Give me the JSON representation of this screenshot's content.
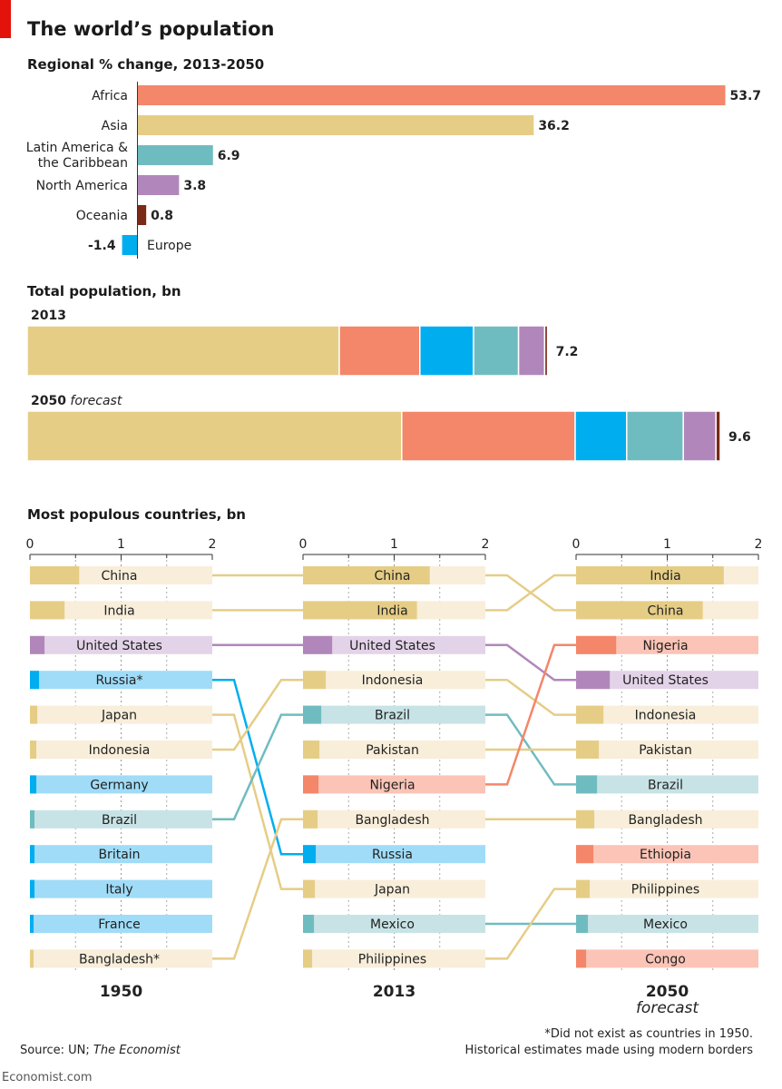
{
  "title": "The world’s population",
  "colors": {
    "Africa": "#f4866a",
    "Asia": "#e6cd86",
    "Latin America & the Caribbean": "#6fbcc0",
    "North America": "#b187bb",
    "Oceania": "#7b2a18",
    "Europe": "#00aeef",
    "accent": "#e3120b"
  },
  "chart_data": [
    {
      "type": "bar",
      "title": "Regional % change, 2013-2050",
      "orientation": "horizontal",
      "categories": [
        "Africa",
        "Asia",
        "Latin America & the Caribbean",
        "North America",
        "Oceania",
        "Europe"
      ],
      "category_display": [
        [
          "Africa"
        ],
        [
          "Asia"
        ],
        [
          "Latin America &",
          "the Caribbean"
        ],
        [
          "North America"
        ],
        [
          "Oceania"
        ],
        [
          "Europe"
        ]
      ],
      "values": [
        53.7,
        36.2,
        6.9,
        3.8,
        0.8,
        -1.4
      ],
      "value_labels": [
        "53.7",
        "36.2",
        "6.9",
        "3.8",
        "0.8",
        "-1.4"
      ]
    },
    {
      "type": "bar",
      "stacked": true,
      "title": "Total population, bn",
      "series_order": [
        "Asia",
        "Africa",
        "Europe",
        "Latin America & the Caribbean",
        "North America",
        "Oceania"
      ],
      "rows": [
        {
          "label": "2013",
          "label_suffix": "",
          "values": [
            4.3,
            1.11,
            0.74,
            0.62,
            0.36,
            0.04
          ],
          "total_label": "7.2"
        },
        {
          "label": "2050",
          "label_suffix": "forecast",
          "values": [
            5.16,
            2.39,
            0.71,
            0.78,
            0.45,
            0.06
          ],
          "total_label": "9.6"
        }
      ]
    },
    {
      "type": "bar",
      "title": "Most populous countries, bn",
      "axis": {
        "min": 0,
        "max": 2,
        "ticks": [
          "0",
          "1",
          "2"
        ]
      },
      "columns": [
        {
          "year": "1950",
          "sub": "",
          "items": [
            {
              "name": "China",
              "value": 0.54,
              "region": "Asia"
            },
            {
              "name": "India",
              "value": 0.38,
              "region": "Asia"
            },
            {
              "name": "United States",
              "value": 0.16,
              "region": "North America"
            },
            {
              "name": "Russia*",
              "value": 0.1,
              "region": "Europe"
            },
            {
              "name": "Japan",
              "value": 0.08,
              "region": "Asia"
            },
            {
              "name": "Indonesia",
              "value": 0.07,
              "region": "Asia"
            },
            {
              "name": "Germany",
              "value": 0.07,
              "region": "Europe"
            },
            {
              "name": "Brazil",
              "value": 0.05,
              "region": "Latin America & the Caribbean"
            },
            {
              "name": "Britain",
              "value": 0.05,
              "region": "Europe"
            },
            {
              "name": "Italy",
              "value": 0.05,
              "region": "Europe"
            },
            {
              "name": "France",
              "value": 0.04,
              "region": "Europe"
            },
            {
              "name": "Bangladesh*",
              "value": 0.04,
              "region": "Asia"
            }
          ]
        },
        {
          "year": "2013",
          "sub": "",
          "items": [
            {
              "name": "China",
              "value": 1.39,
              "region": "Asia"
            },
            {
              "name": "India",
              "value": 1.25,
              "region": "Asia"
            },
            {
              "name": "United States",
              "value": 0.32,
              "region": "North America"
            },
            {
              "name": "Indonesia",
              "value": 0.25,
              "region": "Asia"
            },
            {
              "name": "Brazil",
              "value": 0.2,
              "region": "Latin America & the Caribbean"
            },
            {
              "name": "Pakistan",
              "value": 0.18,
              "region": "Asia"
            },
            {
              "name": "Nigeria",
              "value": 0.17,
              "region": "Africa"
            },
            {
              "name": "Bangladesh",
              "value": 0.16,
              "region": "Asia"
            },
            {
              "name": "Russia",
              "value": 0.14,
              "region": "Europe"
            },
            {
              "name": "Japan",
              "value": 0.13,
              "region": "Asia"
            },
            {
              "name": "Mexico",
              "value": 0.12,
              "region": "Latin America & the Caribbean"
            },
            {
              "name": "Philippines",
              "value": 0.1,
              "region": "Asia"
            }
          ]
        },
        {
          "year": "2050",
          "sub": "forecast",
          "items": [
            {
              "name": "India",
              "value": 1.62,
              "region": "Asia"
            },
            {
              "name": "China",
              "value": 1.39,
              "region": "Asia"
            },
            {
              "name": "Nigeria",
              "value": 0.44,
              "region": "Africa"
            },
            {
              "name": "United States",
              "value": 0.37,
              "region": "North America"
            },
            {
              "name": "Indonesia",
              "value": 0.3,
              "region": "Asia"
            },
            {
              "name": "Pakistan",
              "value": 0.25,
              "region": "Asia"
            },
            {
              "name": "Brazil",
              "value": 0.23,
              "region": "Latin America & the Caribbean"
            },
            {
              "name": "Bangladesh",
              "value": 0.2,
              "region": "Asia"
            },
            {
              "name": "Ethiopia",
              "value": 0.19,
              "region": "Africa"
            },
            {
              "name": "Philippines",
              "value": 0.15,
              "region": "Asia"
            },
            {
              "name": "Mexico",
              "value": 0.13,
              "region": "Latin America & the Caribbean"
            },
            {
              "name": "Congo",
              "value": 0.11,
              "region": "Africa"
            }
          ]
        }
      ],
      "links": [
        {
          "from": [
            0,
            0
          ],
          "to": [
            1,
            0
          ]
        },
        {
          "from": [
            0,
            1
          ],
          "to": [
            1,
            1
          ]
        },
        {
          "from": [
            0,
            2
          ],
          "to": [
            1,
            2
          ]
        },
        {
          "from": [
            0,
            3
          ],
          "to": [
            1,
            8
          ]
        },
        {
          "from": [
            0,
            4
          ],
          "to": [
            1,
            9
          ]
        },
        {
          "from": [
            0,
            5
          ],
          "to": [
            1,
            3
          ]
        },
        {
          "from": [
            0,
            7
          ],
          "to": [
            1,
            4
          ]
        },
        {
          "from": [
            0,
            11
          ],
          "to": [
            1,
            7
          ]
        },
        {
          "from": [
            1,
            0
          ],
          "to": [
            2,
            1
          ]
        },
        {
          "from": [
            1,
            1
          ],
          "to": [
            2,
            0
          ]
        },
        {
          "from": [
            1,
            2
          ],
          "to": [
            2,
            3
          ]
        },
        {
          "from": [
            1,
            3
          ],
          "to": [
            2,
            4
          ]
        },
        {
          "from": [
            1,
            4
          ],
          "to": [
            2,
            6
          ]
        },
        {
          "from": [
            1,
            5
          ],
          "to": [
            2,
            5
          ]
        },
        {
          "from": [
            1,
            6
          ],
          "to": [
            2,
            2
          ]
        },
        {
          "from": [
            1,
            7
          ],
          "to": [
            2,
            7
          ]
        },
        {
          "from": [
            1,
            10
          ],
          "to": [
            2,
            10
          ]
        },
        {
          "from": [
            1,
            11
          ],
          "to": [
            2,
            9
          ]
        }
      ]
    }
  ],
  "footer": {
    "source_prefix": "Source: UN; ",
    "source_italic": "The Economist",
    "footnote_line1": "*Did not exist as countries in 1950.",
    "footnote_line2": "Historical estimates made using modern borders",
    "brand": "Economist.com"
  }
}
